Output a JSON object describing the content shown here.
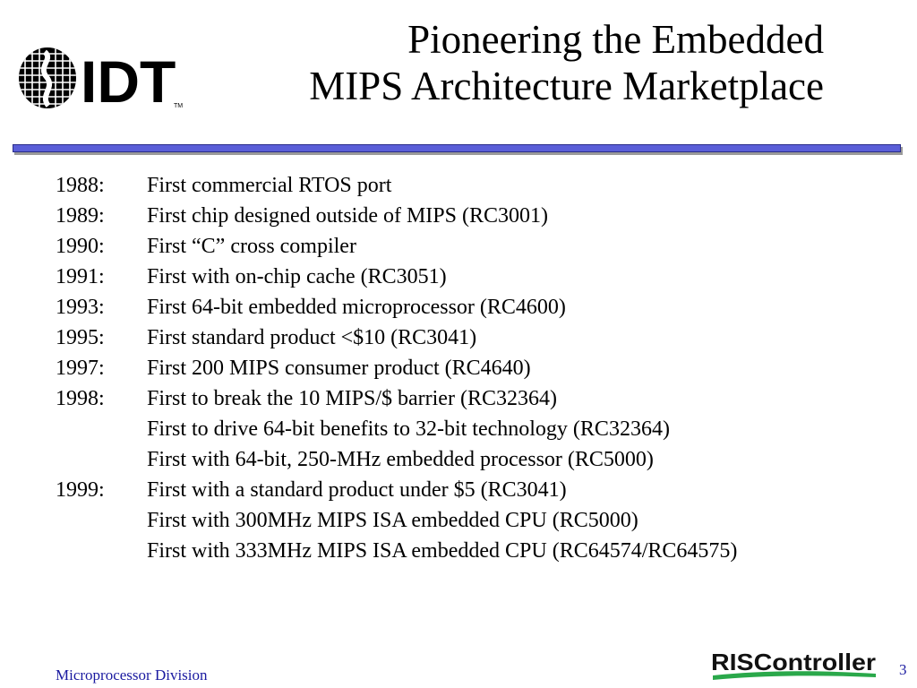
{
  "header": {
    "logo_text": "IDT",
    "logo_tm": "TM",
    "title_line1": "Pioneering the Embedded",
    "title_line2": "MIPS Architecture Marketplace"
  },
  "timeline": [
    {
      "year": "1988:",
      "text": "First commercial RTOS port"
    },
    {
      "year": "1989:",
      "text": "First chip designed outside of MIPS (RC3001)"
    },
    {
      "year": "1990:",
      "text": "First “C” cross compiler"
    },
    {
      "year": "1991:",
      "text": "First with on-chip cache (RC3051)"
    },
    {
      "year": "1993:",
      "text": "First 64-bit embedded microprocessor (RC4600)"
    },
    {
      "year": "1995:",
      "text": "First standard product <$10 (RC3041)"
    },
    {
      "year": "1997:",
      "text": "First 200 MIPS consumer product (RC4640)"
    },
    {
      "year": "1998:",
      "text": "First to break the 10 MIPS/$ barrier (RC32364)"
    },
    {
      "year": "",
      "text": "First to drive 64-bit benefits to 32-bit technology (RC32364)"
    },
    {
      "year": "",
      "text": "First with 64-bit, 250-MHz embedded processor  (RC5000)"
    },
    {
      "year": "1999:",
      "text": "First with a standard product under $5 (RC3041)"
    },
    {
      "year": "",
      "text": "First with 300MHz MIPS ISA embedded CPU (RC5000)"
    },
    {
      "year": "",
      "text": "First with 333MHz MIPS ISA embedded CPU (RC64574/RC64575)"
    }
  ],
  "footer": {
    "division": "Microprocessor Division",
    "product_logo": "RISController",
    "page_number": "3"
  },
  "colors": {
    "divider": "#5a5ed8",
    "footer_text": "#1a1aa0",
    "logo_green": "#2aa84a"
  }
}
